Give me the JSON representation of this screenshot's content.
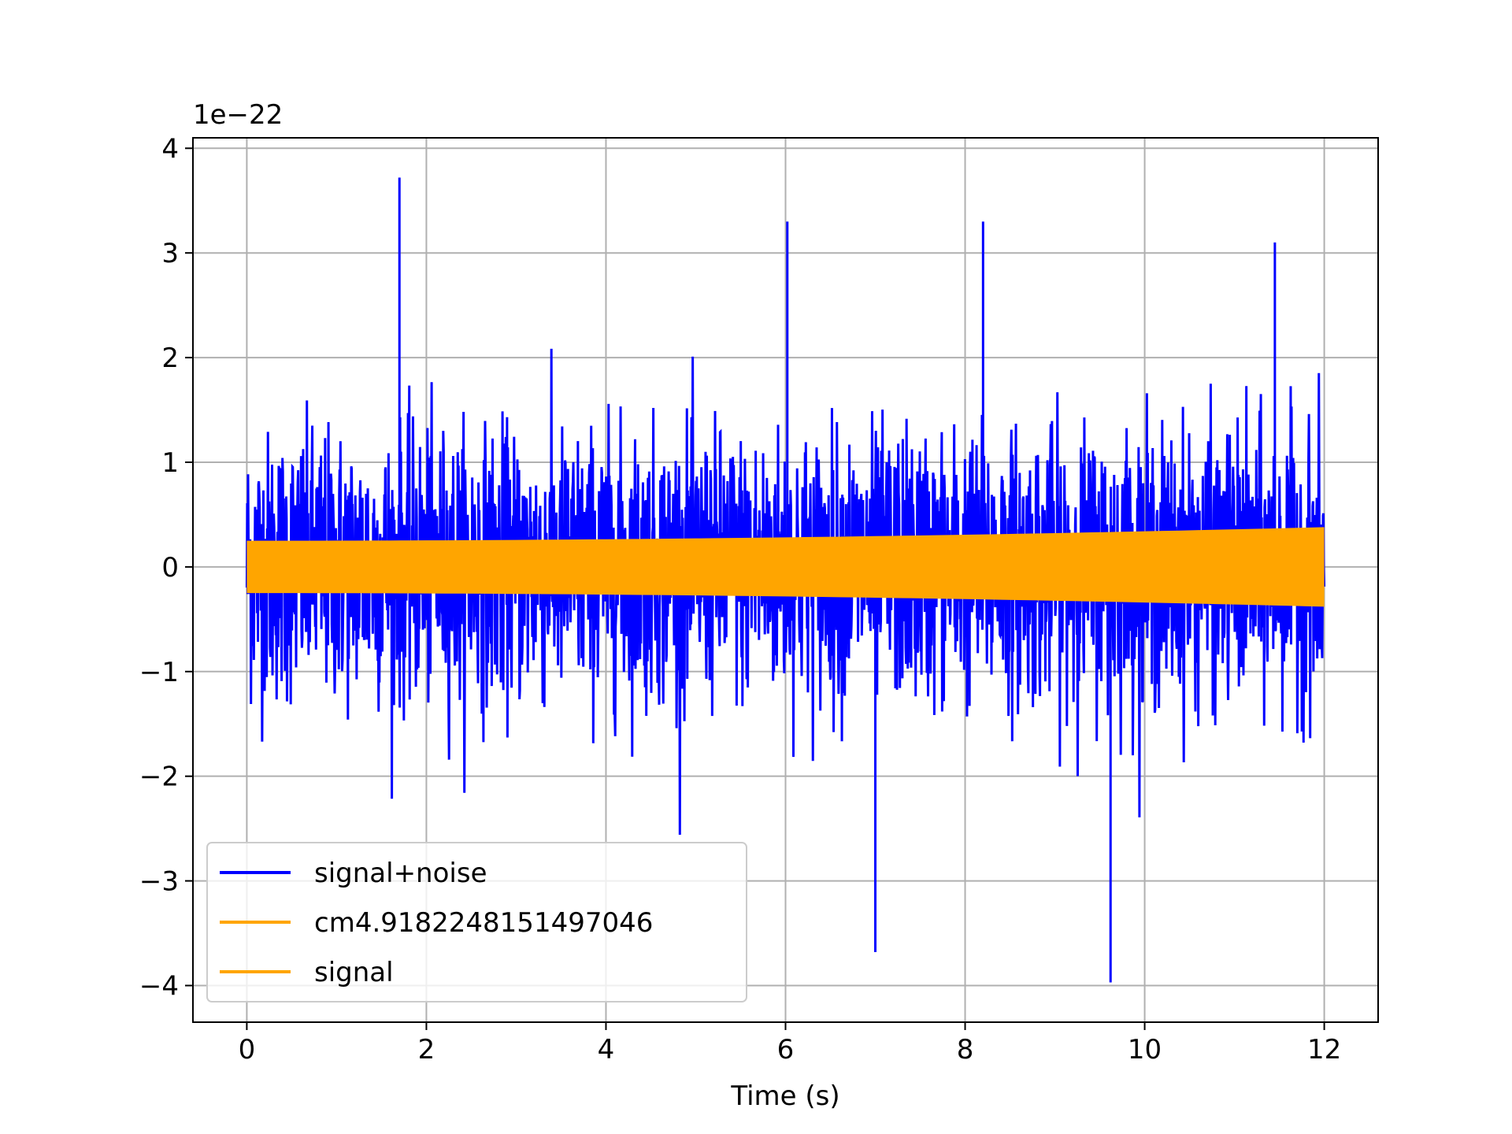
{
  "chart_data": {
    "type": "line",
    "title": "",
    "xlabel": "Time (s)",
    "ylabel": "",
    "y_offset_label": "1e−22",
    "xlim": [
      -0.6,
      12.6
    ],
    "ylim": [
      -4.35,
      4.1
    ],
    "x_ticks": [
      0,
      2,
      4,
      6,
      8,
      10,
      12
    ],
    "x_tick_labels": [
      "0",
      "2",
      "4",
      "6",
      "8",
      "10",
      "12"
    ],
    "y_ticks": [
      -4,
      -3,
      -2,
      -1,
      0,
      1,
      2,
      3,
      4
    ],
    "y_tick_labels": [
      "−4",
      "−3",
      "−2",
      "−1",
      "0",
      "1",
      "2",
      "3",
      "4"
    ],
    "grid": true,
    "legend_position": "lower-left",
    "series": [
      {
        "name": "signal+noise",
        "color": "#0000ff",
        "x_range": [
          0,
          12
        ],
        "amplitude_typical": 1.4,
        "peak_max": 3.72,
        "peak_min": -3.97
      },
      {
        "name": "cm4.9182248151497046",
        "color": "#ffa500",
        "x_range": [
          0,
          12
        ],
        "envelope_start": 0.25,
        "envelope_end": 0.38
      },
      {
        "name": "signal",
        "color": "#ffa500",
        "x_range": [
          0,
          12
        ],
        "envelope_start": 0.25,
        "envelope_end": 0.38
      }
    ]
  }
}
